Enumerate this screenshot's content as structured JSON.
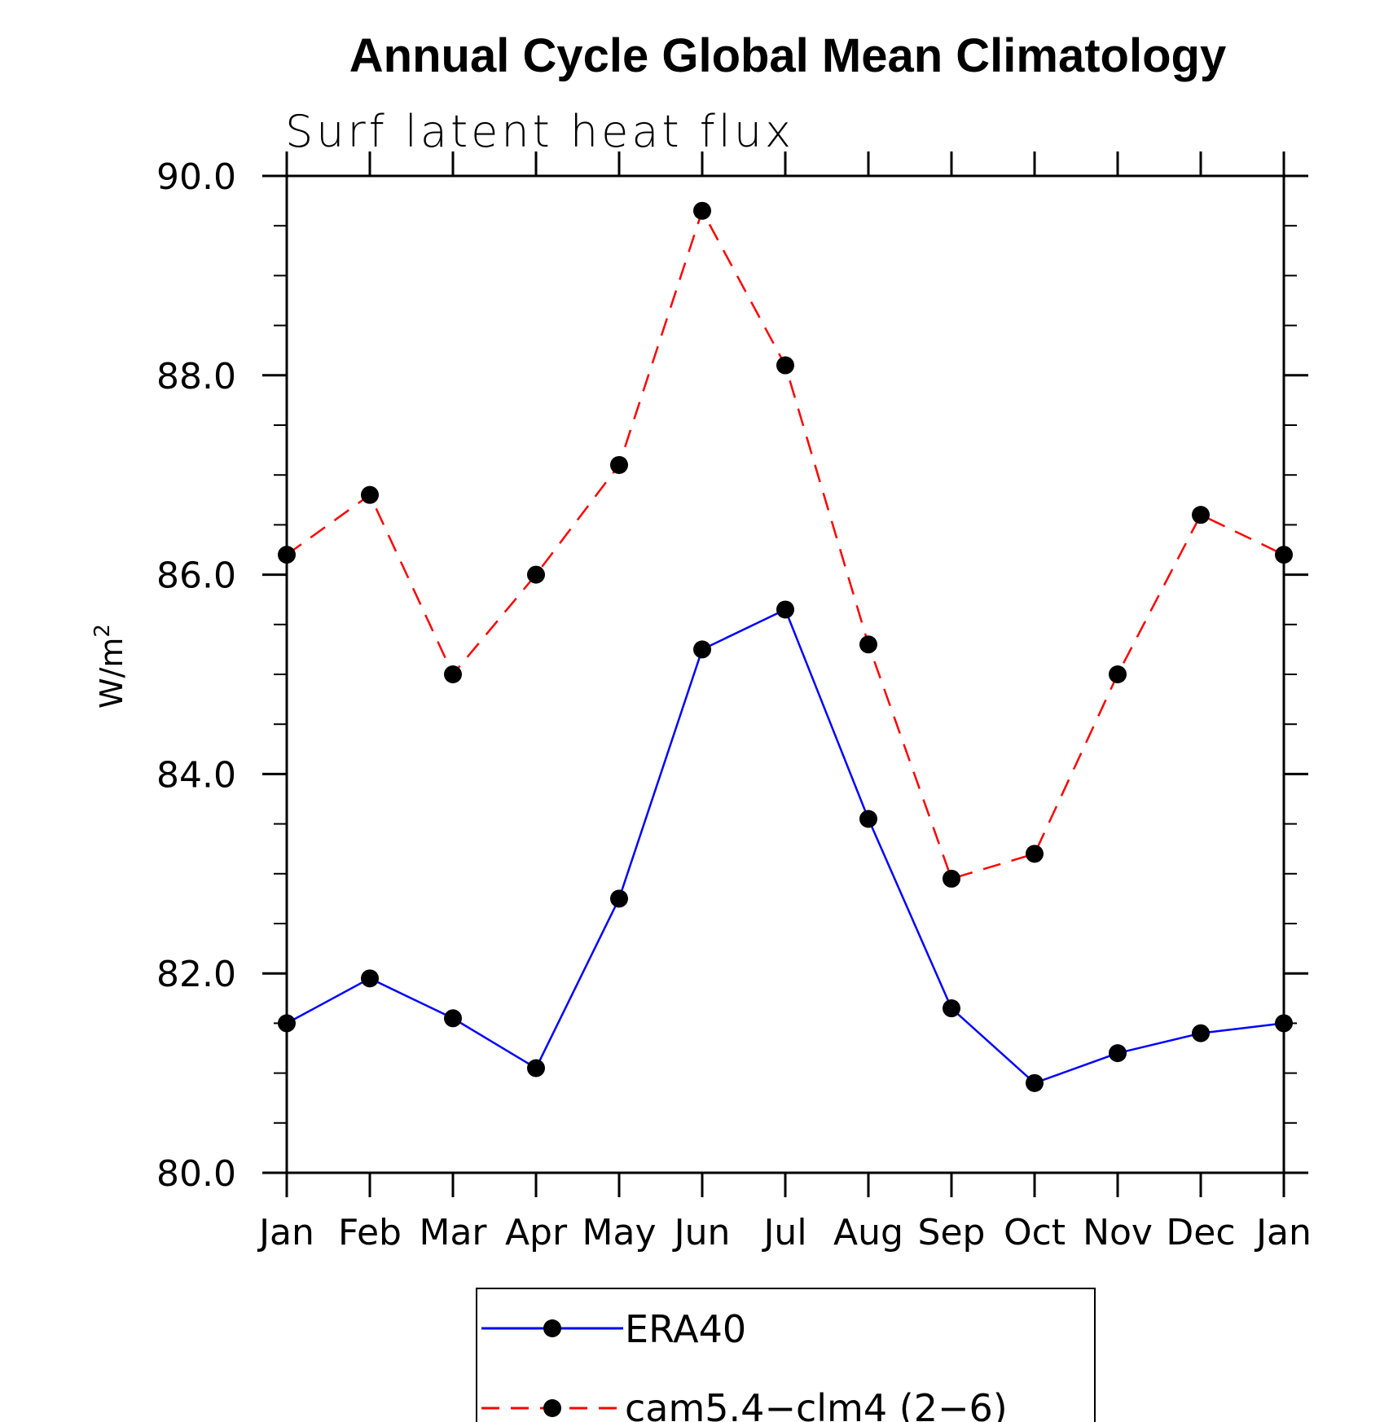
{
  "chart_data": {
    "type": "line",
    "title": "Annual Cycle Global Mean Climatology",
    "subtitle": "Surf latent heat flux",
    "xlabel": "",
    "ylabel": "W/m",
    "ylabel_sup": "2",
    "categories": [
      "Jan",
      "Feb",
      "Mar",
      "Apr",
      "May",
      "Jun",
      "Jul",
      "Aug",
      "Sep",
      "Oct",
      "Nov",
      "Dec",
      "Jan"
    ],
    "ylim": [
      80.0,
      90.0
    ],
    "yticks": [
      "80.0",
      "82.0",
      "84.0",
      "86.0",
      "88.0",
      "90.0"
    ],
    "ytick_values": [
      80,
      82,
      84,
      86,
      88,
      90
    ],
    "grid": false,
    "legend_position": "bottom-center",
    "series": [
      {
        "name": "ERA40",
        "color": "#0000ff",
        "dash": "solid",
        "marker": "filled-circle",
        "values": [
          81.5,
          81.95,
          81.55,
          81.05,
          82.75,
          85.25,
          85.65,
          83.55,
          81.65,
          80.9,
          81.2,
          81.4,
          81.5
        ]
      },
      {
        "name": "cam5.4−clm4 (2−6)",
        "color": "#ff0000",
        "dash": "dashed",
        "marker": "filled-circle",
        "values": [
          86.2,
          86.8,
          85.0,
          86.0,
          87.1,
          89.65,
          88.1,
          85.3,
          82.95,
          83.2,
          85.0,
          86.6,
          86.2
        ]
      }
    ]
  }
}
